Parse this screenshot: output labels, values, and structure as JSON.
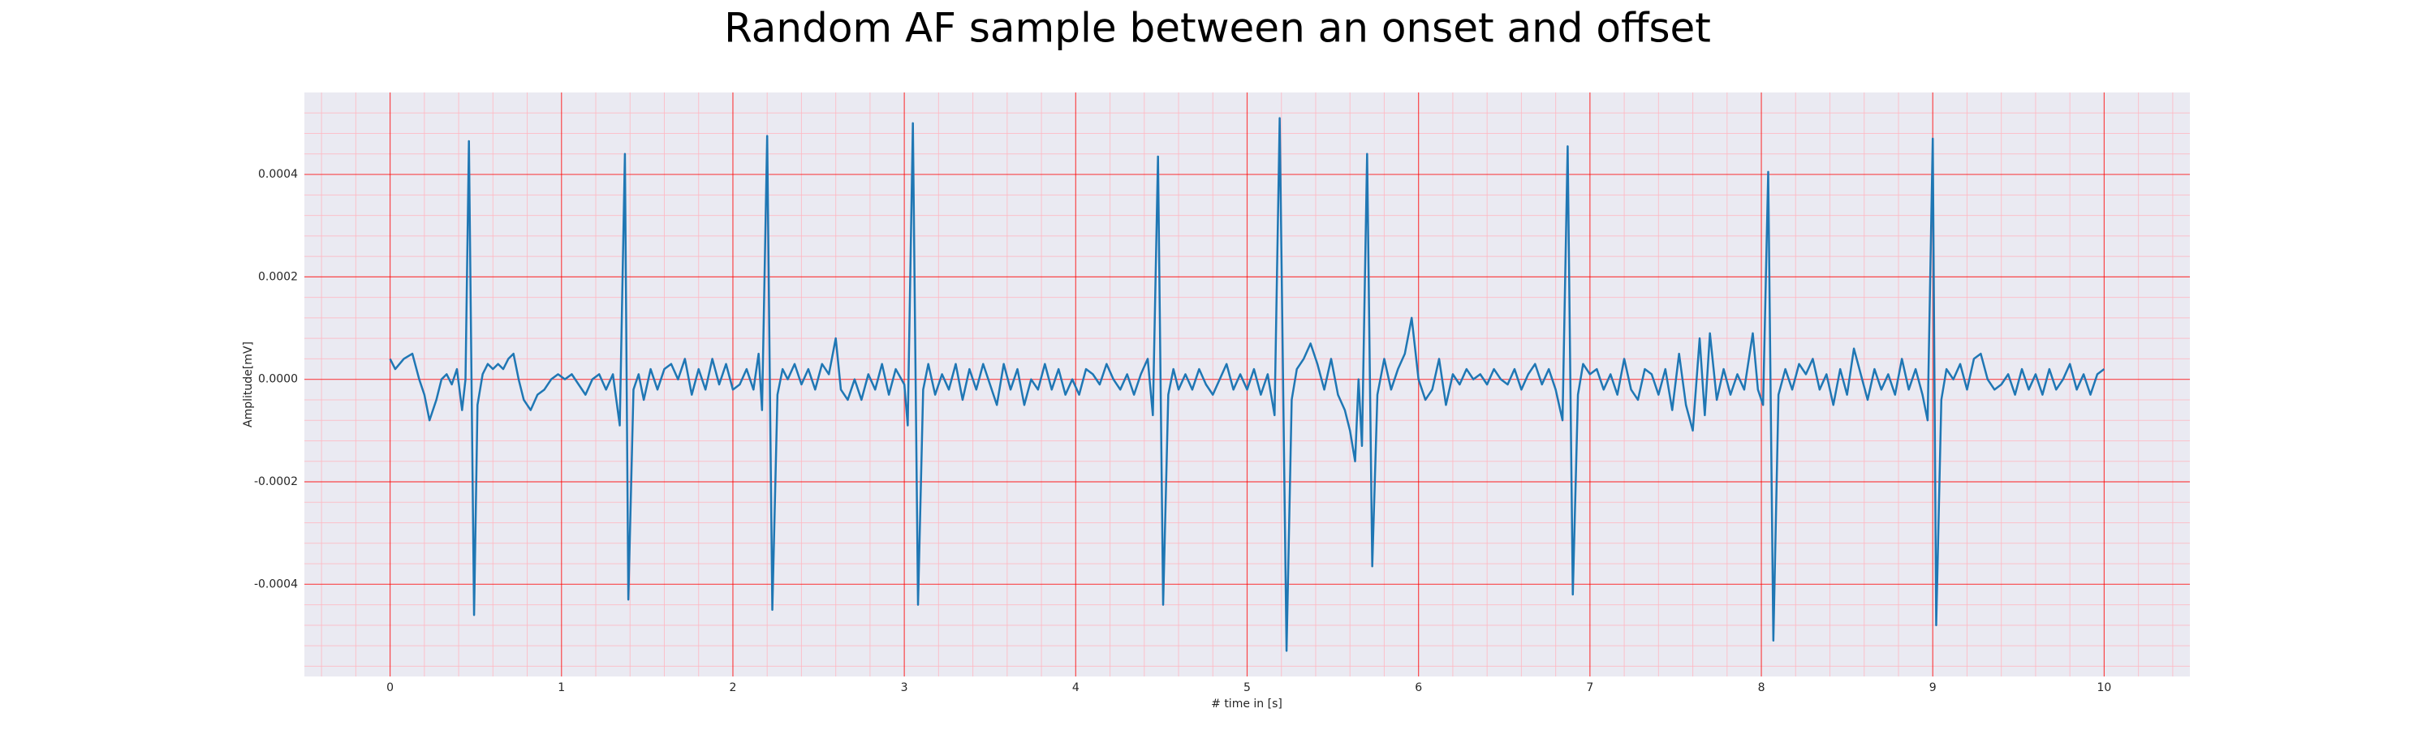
{
  "chart_data": {
    "type": "line",
    "title": "Random AF sample between an onset and offset",
    "xlabel": "# time in [s]",
    "ylabel": "Amplitude[mV]",
    "xlim": [
      -0.5,
      10.5
    ],
    "ylim": [
      -0.00058,
      0.00056
    ],
    "xticks": [
      0,
      1,
      2,
      3,
      4,
      5,
      6,
      7,
      8,
      9,
      10
    ],
    "yticks": [
      {
        "value": -0.0004,
        "label": "-0.0004"
      },
      {
        "value": -0.0002,
        "label": "-0.0002"
      },
      {
        "value": 0,
        "label": "0.0000"
      },
      {
        "value": 0.0002,
        "label": "0.0002"
      },
      {
        "value": 0.0004,
        "label": "0.0004"
      }
    ],
    "grid": true,
    "grid_color": "#ff0000",
    "minor_grid": true,
    "minor_grid_color": "#ffb6c1",
    "background": "#eaeaf2",
    "x": [
      0,
      0.03,
      0.08,
      0.13,
      0.17,
      0.2,
      0.23,
      0.27,
      0.3,
      0.33,
      0.36,
      0.39,
      0.42,
      0.44,
      0.46,
      0.49,
      0.51,
      0.54,
      0.57,
      0.6,
      0.63,
      0.66,
      0.69,
      0.72,
      0.75,
      0.78,
      0.82,
      0.86,
      0.9,
      0.94,
      0.98,
      1.02,
      1.06,
      1.1,
      1.14,
      1.18,
      1.22,
      1.26,
      1.3,
      1.34,
      1.37,
      1.39,
      1.42,
      1.45,
      1.48,
      1.52,
      1.56,
      1.6,
      1.64,
      1.68,
      1.72,
      1.76,
      1.8,
      1.84,
      1.88,
      1.92,
      1.96,
      2.0,
      2.04,
      2.08,
      2.12,
      2.15,
      2.17,
      2.2,
      2.23,
      2.26,
      2.29,
      2.32,
      2.36,
      2.4,
      2.44,
      2.48,
      2.52,
      2.56,
      2.6,
      2.63,
      2.67,
      2.71,
      2.75,
      2.79,
      2.83,
      2.87,
      2.91,
      2.95,
      3.0,
      3.02,
      3.05,
      3.08,
      3.11,
      3.14,
      3.18,
      3.22,
      3.26,
      3.3,
      3.34,
      3.38,
      3.42,
      3.46,
      3.5,
      3.54,
      3.58,
      3.62,
      3.66,
      3.7,
      3.74,
      3.78,
      3.82,
      3.86,
      3.9,
      3.94,
      3.98,
      4.02,
      4.06,
      4.1,
      4.14,
      4.18,
      4.22,
      4.26,
      4.3,
      4.34,
      4.38,
      4.42,
      4.45,
      4.48,
      4.51,
      4.54,
      4.57,
      4.6,
      4.64,
      4.68,
      4.72,
      4.76,
      4.8,
      4.84,
      4.88,
      4.92,
      4.96,
      5.0,
      5.04,
      5.08,
      5.12,
      5.16,
      5.19,
      5.23,
      5.26,
      5.29,
      5.33,
      5.37,
      5.41,
      5.45,
      5.49,
      5.53,
      5.57,
      5.6,
      5.63,
      5.65,
      5.67,
      5.7,
      5.73,
      5.76,
      5.8,
      5.84,
      5.88,
      5.92,
      5.96,
      6.0,
      6.04,
      6.08,
      6.12,
      6.16,
      6.2,
      6.24,
      6.28,
      6.32,
      6.36,
      6.4,
      6.44,
      6.48,
      6.52,
      6.56,
      6.6,
      6.64,
      6.68,
      6.72,
      6.76,
      6.8,
      6.84,
      6.87,
      6.9,
      6.93,
      6.96,
      7.0,
      7.04,
      7.08,
      7.12,
      7.16,
      7.2,
      7.24,
      7.28,
      7.32,
      7.36,
      7.4,
      7.44,
      7.48,
      7.52,
      7.56,
      7.6,
      7.64,
      7.67,
      7.7,
      7.74,
      7.78,
      7.82,
      7.86,
      7.9,
      7.95,
      7.98,
      8.01,
      8.04,
      8.07,
      8.1,
      8.14,
      8.18,
      8.22,
      8.26,
      8.3,
      8.34,
      8.38,
      8.42,
      8.46,
      8.5,
      8.54,
      8.58,
      8.62,
      8.66,
      8.7,
      8.74,
      8.78,
      8.82,
      8.86,
      8.9,
      8.94,
      8.97,
      9.0,
      9.02,
      9.05,
      9.08,
      9.12,
      9.16,
      9.2,
      9.24,
      9.28,
      9.32,
      9.36,
      9.4,
      9.44,
      9.48,
      9.52,
      9.56,
      9.6,
      9.64,
      9.68,
      9.72,
      9.76,
      9.8,
      9.84,
      9.88,
      9.92,
      9.96,
      10.0
    ],
    "series": [
      {
        "color": "#1f77b4",
        "values": [
          4e-05,
          2e-05,
          4e-05,
          5e-05,
          0,
          -3e-05,
          -8e-05,
          -4e-05,
          0,
          1e-05,
          -1e-05,
          2e-05,
          -6e-05,
          0,
          0.000465,
          -0.00046,
          -5e-05,
          1e-05,
          3e-05,
          2e-05,
          3e-05,
          2e-05,
          4e-05,
          5e-05,
          0,
          -4e-05,
          -6e-05,
          -3e-05,
          -2e-05,
          0,
          1e-05,
          0,
          1e-05,
          -1e-05,
          -3e-05,
          0,
          1e-05,
          -2e-05,
          1e-05,
          -9e-05,
          0.00044,
          -0.00043,
          -2e-05,
          1e-05,
          -4e-05,
          2e-05,
          -2e-05,
          2e-05,
          3e-05,
          0,
          4e-05,
          -3e-05,
          2e-05,
          -2e-05,
          4e-05,
          -1e-05,
          3e-05,
          -2e-05,
          -1e-05,
          2e-05,
          -2e-05,
          5e-05,
          -6e-05,
          0.000475,
          -0.00045,
          -3e-05,
          2e-05,
          0,
          3e-05,
          -1e-05,
          2e-05,
          -2e-05,
          3e-05,
          1e-05,
          8e-05,
          -2e-05,
          -4e-05,
          0,
          -4e-05,
          1e-05,
          -2e-05,
          3e-05,
          -3e-05,
          2e-05,
          -1e-05,
          -9e-05,
          0.0005,
          -0.00044,
          -2e-05,
          3e-05,
          -3e-05,
          1e-05,
          -2e-05,
          3e-05,
          -4e-05,
          2e-05,
          -2e-05,
          3e-05,
          -1e-05,
          -5e-05,
          3e-05,
          -2e-05,
          2e-05,
          -5e-05,
          0,
          -2e-05,
          3e-05,
          -2e-05,
          2e-05,
          -3e-05,
          0,
          -3e-05,
          2e-05,
          1e-05,
          -1e-05,
          3e-05,
          0,
          -2e-05,
          1e-05,
          -3e-05,
          1e-05,
          4e-05,
          -7e-05,
          0.000435,
          -0.00044,
          -3e-05,
          2e-05,
          -2e-05,
          1e-05,
          -2e-05,
          2e-05,
          -1e-05,
          -3e-05,
          0,
          3e-05,
          -2e-05,
          1e-05,
          -2e-05,
          2e-05,
          -3e-05,
          1e-05,
          -7e-05,
          0.00051,
          -0.00053,
          -4e-05,
          2e-05,
          4e-05,
          7e-05,
          3e-05,
          -2e-05,
          4e-05,
          -3e-05,
          -6e-05,
          -0.0001,
          -0.00016,
          0,
          -0.00013,
          0.00044,
          -0.000365,
          -3e-05,
          4e-05,
          -2e-05,
          2e-05,
          5e-05,
          0.00012,
          0,
          -4e-05,
          -2e-05,
          4e-05,
          -5e-05,
          1e-05,
          -1e-05,
          2e-05,
          0,
          1e-05,
          -1e-05,
          2e-05,
          0,
          -1e-05,
          2e-05,
          -2e-05,
          1e-05,
          3e-05,
          -1e-05,
          2e-05,
          -2e-05,
          -8e-05,
          0.000455,
          -0.00042,
          -3e-05,
          3e-05,
          1e-05,
          2e-05,
          -2e-05,
          1e-05,
          -3e-05,
          4e-05,
          -2e-05,
          -4e-05,
          2e-05,
          1e-05,
          -3e-05,
          2e-05,
          -6e-05,
          5e-05,
          -5e-05,
          -0.0001,
          8e-05,
          -7e-05,
          9e-05,
          -4e-05,
          2e-05,
          -3e-05,
          1e-05,
          -2e-05,
          9e-05,
          -2e-05,
          -5e-05,
          0.000405,
          -0.00051,
          -3e-05,
          2e-05,
          -2e-05,
          3e-05,
          1e-05,
          4e-05,
          -2e-05,
          1e-05,
          -5e-05,
          2e-05,
          -3e-05,
          6e-05,
          1e-05,
          -4e-05,
          2e-05,
          -2e-05,
          1e-05,
          -3e-05,
          4e-05,
          -2e-05,
          2e-05,
          -3e-05,
          -8e-05,
          0.00047,
          -0.00048,
          -4e-05,
          2e-05,
          0,
          3e-05,
          -2e-05,
          4e-05,
          5e-05,
          0,
          -2e-05,
          -1e-05,
          1e-05,
          -3e-05,
          2e-05,
          -2e-05,
          1e-05,
          -3e-05,
          2e-05,
          -2e-05,
          0,
          3e-05,
          -2e-05,
          1e-05,
          -3e-05,
          1e-05,
          2e-05
        ]
      }
    ]
  }
}
